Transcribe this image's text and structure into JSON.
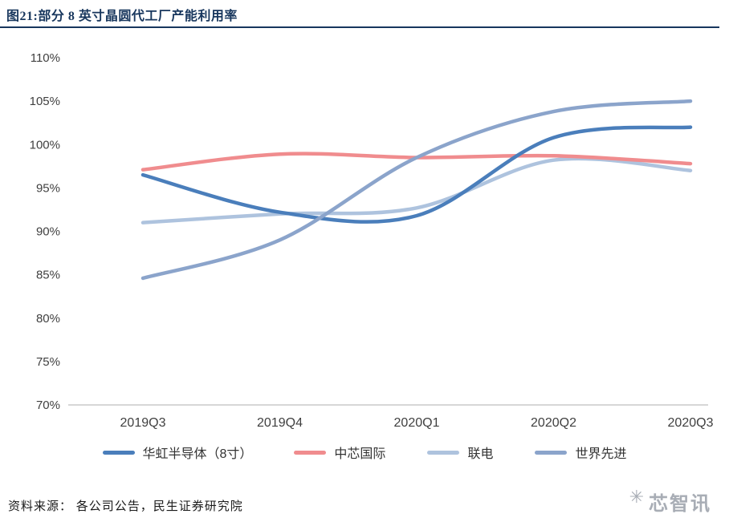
{
  "header": {
    "title": "图21:部分 8 英寸晶圆代工厂产能利用率"
  },
  "chart_data": {
    "type": "line",
    "title": "部分 8 英寸晶圆代工厂产能利用率",
    "categories": [
      "2019Q3",
      "2019Q4",
      "2020Q1",
      "2020Q2",
      "2020Q3"
    ],
    "series": [
      {
        "name": "华虹半导体（8寸）",
        "color": "#4a7ebb",
        "values": [
          96.5,
          92.2,
          91.8,
          100.8,
          102.0
        ]
      },
      {
        "name": "中芯国际",
        "color": "#f08c8e",
        "values": [
          97.1,
          98.9,
          98.5,
          98.7,
          97.8
        ]
      },
      {
        "name": "联电",
        "color": "#aec3de",
        "values": [
          91.0,
          92.0,
          92.7,
          98.2,
          97.0
        ]
      },
      {
        "name": "世界先进",
        "color": "#8ba4cb",
        "values": [
          84.6,
          89.0,
          98.5,
          103.8,
          105.0
        ]
      }
    ],
    "ylim": [
      70,
      110
    ],
    "ytick_step": 5,
    "ytick_labels": [
      "70%",
      "75%",
      "80%",
      "85%",
      "90%",
      "95%",
      "100%",
      "105%",
      "110%"
    ],
    "grid": false,
    "legend_position": "bottom",
    "axis_color": "#c9c9c9",
    "tick_label_color": "#404040"
  },
  "footer": {
    "source": "资料来源： 各公司公告，民生证券研究院"
  },
  "watermark": {
    "icon": "snowflake-icon",
    "icon_glyph": "✳",
    "text": "芯智讯"
  }
}
